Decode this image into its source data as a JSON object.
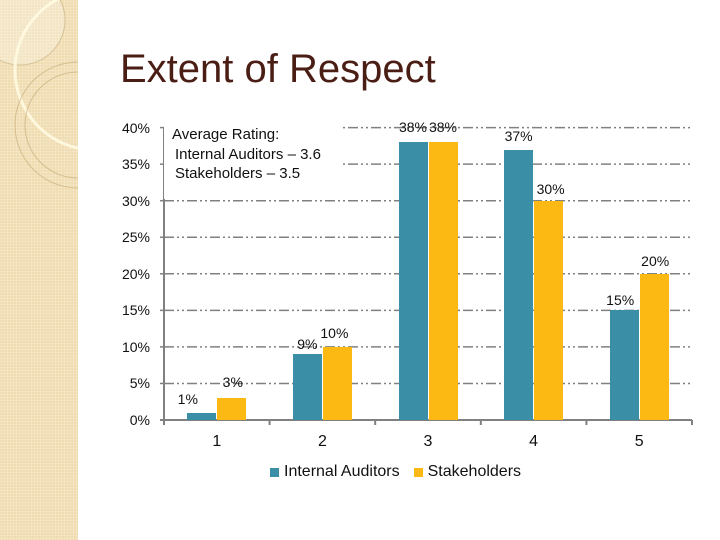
{
  "slide": {
    "title": "Extent of Respect"
  },
  "annotation": {
    "line1": "Average Rating:",
    "line2": "Internal Auditors – 3.6",
    "line3": "Stakeholders – 3.5"
  },
  "colors": {
    "internal_auditors": "#3a8ea5",
    "stakeholders": "#fdb913",
    "title": "#4a1e14",
    "sidebar": "#efdcb0",
    "gridline": "#808080"
  },
  "legend": [
    {
      "label": "Internal Auditors",
      "color": "#3a8ea5"
    },
    {
      "label": "Stakeholders",
      "color": "#fdb913"
    }
  ],
  "chart_data": {
    "type": "bar",
    "title": "Extent of Respect",
    "xlabel": "",
    "ylabel": "",
    "categories": [
      "1",
      "2",
      "3",
      "4",
      "5"
    ],
    "series": [
      {
        "name": "Internal Auditors",
        "values": [
          1,
          9,
          38,
          37,
          15
        ],
        "labels": [
          "1%",
          "9%",
          "38%",
          "37%",
          "15%"
        ]
      },
      {
        "name": "Stakeholders",
        "values": [
          3,
          10,
          38,
          30,
          20
        ],
        "labels": [
          "3%",
          "10%",
          "38%",
          "30%",
          "20%"
        ]
      }
    ],
    "yticks": [
      "0%",
      "5%",
      "10%",
      "15%",
      "20%",
      "25%",
      "30%",
      "35%",
      "40%"
    ],
    "ylim": [
      0,
      40
    ],
    "grid": true,
    "legend_position": "bottom",
    "annotation": [
      "Average Rating:",
      "Internal Auditors – 3.6",
      "Stakeholders – 3.5"
    ]
  }
}
